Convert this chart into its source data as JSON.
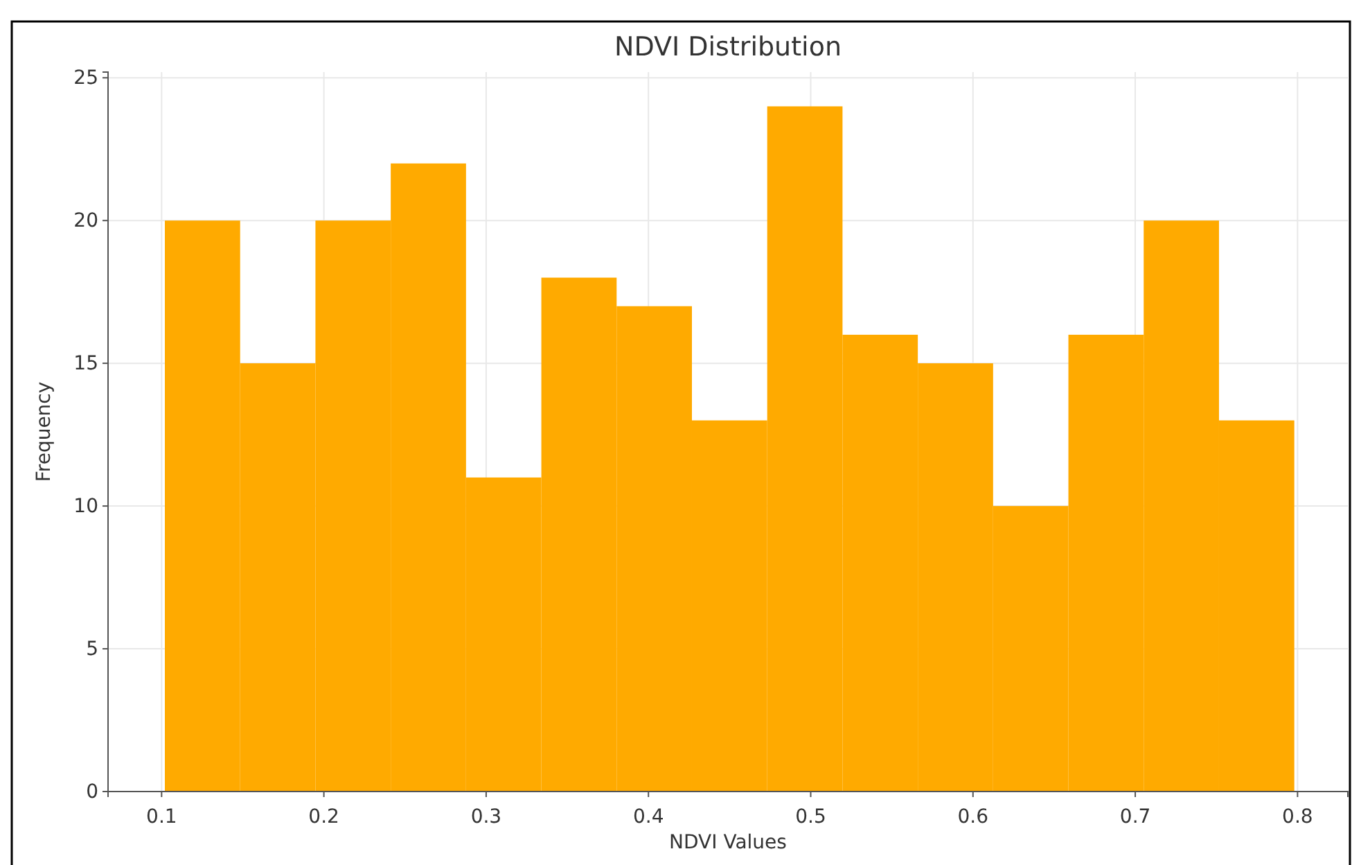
{
  "chart_data": {
    "type": "histogram",
    "title": "NDVI Distribution",
    "xlabel": "NDVI Values",
    "ylabel": "Frequency",
    "bins": [
      0.102,
      0.1484,
      0.1948,
      0.2412,
      0.2876,
      0.334,
      0.3804,
      0.4268,
      0.4732,
      0.5196,
      0.566,
      0.6124,
      0.6588,
      0.7052,
      0.7516,
      0.798
    ],
    "values": [
      20,
      15,
      20,
      22,
      11,
      18,
      17,
      13,
      24,
      16,
      15,
      10,
      16,
      20,
      13
    ],
    "color": "#ffaa00",
    "xlim": [
      0.067,
      0.831
    ],
    "xticks": [
      0.1,
      0.2,
      0.3,
      0.4,
      0.5,
      0.6,
      0.7,
      0.8
    ],
    "ylim": [
      0,
      25.2
    ],
    "yticks": [
      0,
      5,
      10,
      15,
      20,
      25
    ],
    "grid": true
  }
}
